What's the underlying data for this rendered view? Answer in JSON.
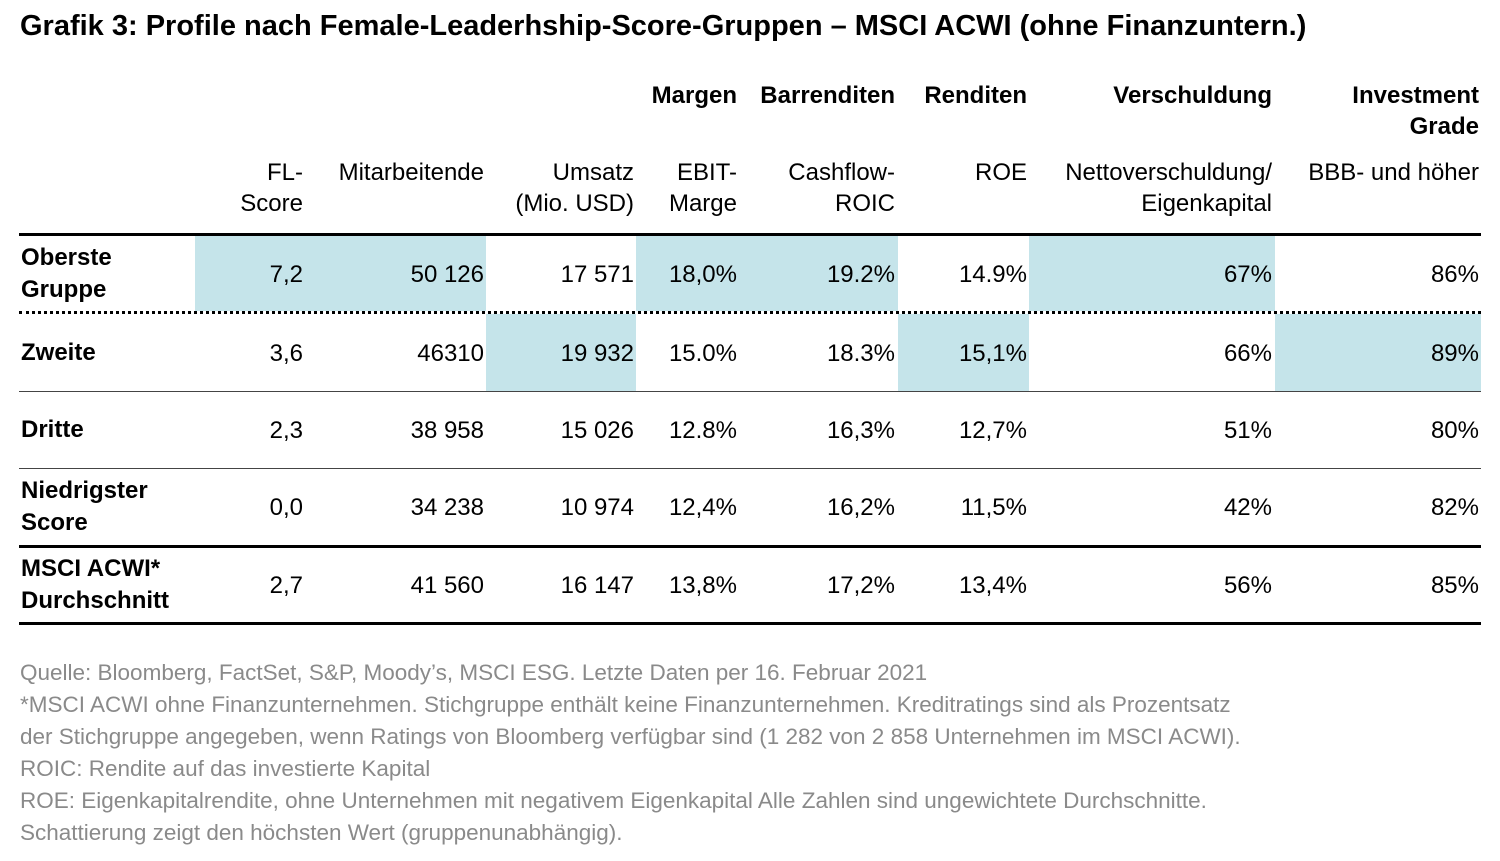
{
  "title": "Grafik 3: Profile nach Female-Leaderhship-Score-Gruppen – MSCI ACWI (ohne Finanzuntern.)",
  "chart_data": {
    "type": "table",
    "groups": {
      "margen": "Margen",
      "barrenditen": "Barrenditen",
      "renditen": "Renditen",
      "verschuldung": "Verschuldung",
      "investment": [
        "Investment",
        "Grade"
      ]
    },
    "columns": [
      [
        "FL-",
        "Score"
      ],
      [
        "Mitarbeitende"
      ],
      [
        "Umsatz",
        "(Mio. USD)"
      ],
      [
        "EBIT-",
        "Marge"
      ],
      [
        "Cashflow-",
        "ROIC"
      ],
      [
        "ROE"
      ],
      [
        "Nettoverschuldung/",
        "Eigenkapital"
      ],
      [
        "BBB- und höher"
      ]
    ],
    "rows": [
      {
        "label": [
          "Oberste",
          "Gruppe"
        ],
        "values": [
          "7,2",
          "50 126",
          "17 571",
          "18,0%",
          "19.2%",
          "14.9%",
          "67%",
          "86%"
        ],
        "highlight": [
          0,
          1,
          3,
          4,
          6
        ]
      },
      {
        "label": [
          "Zweite"
        ],
        "values": [
          "3,6",
          "46310",
          "19 932",
          "15.0%",
          "18.3%",
          "15,1%",
          "66%",
          "89%"
        ],
        "highlight": [
          2,
          5,
          7
        ]
      },
      {
        "label": [
          "Dritte"
        ],
        "values": [
          "2,3",
          "38 958",
          "15 026",
          "12.8%",
          "16,3%",
          "12,7%",
          "51%",
          "80%"
        ],
        "highlight": []
      },
      {
        "label": [
          "Niedrigster",
          "Score"
        ],
        "values": [
          "0,0",
          "34 238",
          "10 974",
          "12,4%",
          "16,2%",
          "11,5%",
          "42%",
          "82%"
        ],
        "highlight": []
      },
      {
        "label": [
          "MSCI ACWI*",
          "Durchschnitt"
        ],
        "values": [
          "2,7",
          "41 560",
          "16 147",
          "13,8%",
          "17,2%",
          "13,4%",
          "56%",
          "85%"
        ],
        "highlight": []
      }
    ],
    "highlight_color": "#c5e4ea"
  },
  "notes": [
    "Quelle: Bloomberg, FactSet, S&P, Moody’s, MSCI ESG. Letzte Daten per 16. Februar 2021",
    "*MSCI ACWI ohne Finanzunternehmen. Stichgruppe enthält keine Finanzunternehmen. Kreditratings sind als Prozentsatz",
    "der Stichgruppe angegeben, wenn Ratings von Bloomberg verfügbar sind (1 282 von 2 858 Unternehmen im MSCI ACWI).",
    "ROIC: Rendite auf das investierte Kapital",
    "ROE: Eigenkapitalrendite, ohne Unternehmen mit negativem Eigenkapital Alle Zahlen sind ungewichtete Durchschnitte.",
    "Schattierung zeigt den höchsten Wert (gruppenunabhängig)."
  ]
}
